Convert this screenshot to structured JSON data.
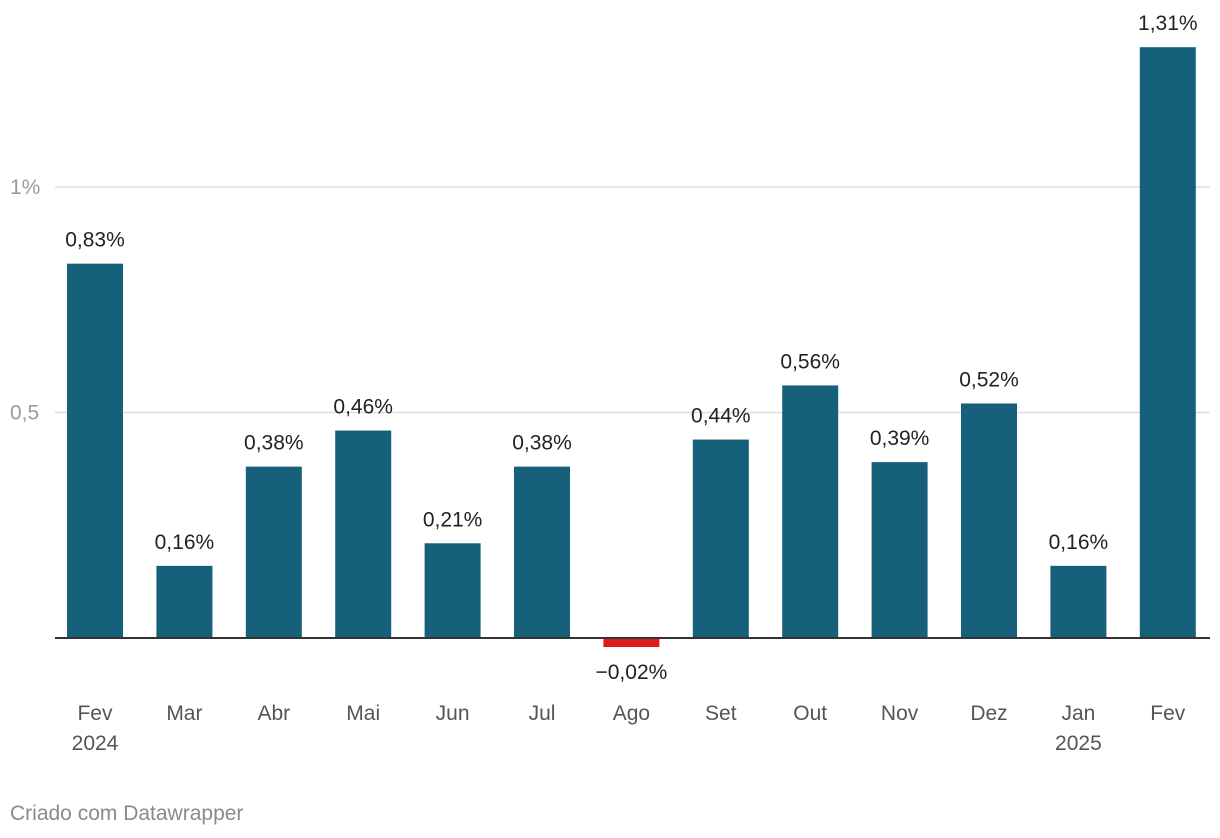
{
  "chart_data": {
    "type": "bar",
    "categories": [
      "Fev",
      "Mar",
      "Abr",
      "Mai",
      "Jun",
      "Jul",
      "Ago",
      "Set",
      "Out",
      "Nov",
      "Dez",
      "Jan",
      "Fev"
    ],
    "category_sublabels": [
      "2024",
      "",
      "",
      "",
      "",
      "",
      "",
      "",
      "",
      "",
      "",
      "2025",
      ""
    ],
    "values": [
      0.83,
      0.16,
      0.38,
      0.46,
      0.21,
      0.38,
      -0.02,
      0.44,
      0.56,
      0.39,
      0.52,
      0.16,
      1.31
    ],
    "value_labels": [
      "0,83%",
      "0,16%",
      "0,38%",
      "0,46%",
      "0,21%",
      "0,38%",
      "−0,02%",
      "0,44%",
      "0,56%",
      "0,39%",
      "0,52%",
      "0,16%",
      "1,31%"
    ],
    "y_ticks": [
      {
        "value": 0.5,
        "label": "0,5"
      },
      {
        "value": 1,
        "label": "1%"
      }
    ],
    "ylim": [
      -0.02,
      1.31
    ],
    "grid": true,
    "colors": {
      "positive": "#17607b",
      "negative": "#e0191a",
      "grid": "#dedede",
      "axis": "#333333",
      "tick_label": "#9a9a9a",
      "category_label": "#555555",
      "value_label": "#222222"
    }
  },
  "footer": {
    "credit": "Criado com Datawrapper"
  }
}
